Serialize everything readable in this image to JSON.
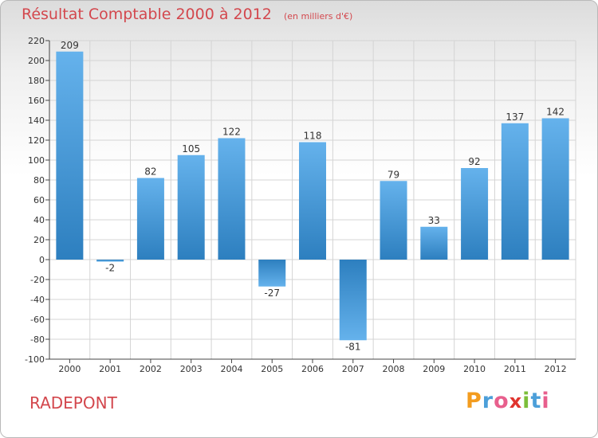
{
  "header": {
    "title": "Résultat Comptable 2000 à 2012",
    "unit": "(en milliers d'€)"
  },
  "footer": {
    "commune": "RADEPONT",
    "brand": {
      "letters": [
        "P",
        "r",
        "o",
        "x",
        "i",
        "t",
        "i"
      ],
      "colors": [
        "#f39c1f",
        "#4c9fd9",
        "#e85f8d",
        "#e0342e",
        "#7cbe3a",
        "#4c9fd9",
        "#e85f8d"
      ]
    }
  },
  "colors": {
    "accent": "#d3474d",
    "bar_light": "#65b2ec",
    "bar_dark": "#2d7fbf",
    "grid": "#d4d4d4",
    "axis": "#444444"
  },
  "chart_data": {
    "type": "bar",
    "categories": [
      "2000",
      "2001",
      "2002",
      "2003",
      "2004",
      "2005",
      "2006",
      "2007",
      "2008",
      "2009",
      "2010",
      "2011",
      "2012"
    ],
    "values": [
      209,
      -2,
      82,
      105,
      122,
      -27,
      118,
      -81,
      79,
      33,
      92,
      137,
      142
    ],
    "data_labels": [
      "209",
      "-2",
      "82",
      "105",
      "122",
      "-27",
      "118",
      "-81",
      "79",
      "33",
      "92",
      "137",
      "142"
    ],
    "ylim": [
      -100,
      220
    ],
    "yticks": [
      -100,
      -80,
      -60,
      -40,
      -20,
      0,
      20,
      40,
      60,
      80,
      100,
      120,
      140,
      160,
      180,
      200,
      220
    ],
    "grid": true,
    "title": "Résultat Comptable 2000 à 2012",
    "xlabel": "",
    "ylabel": ""
  }
}
